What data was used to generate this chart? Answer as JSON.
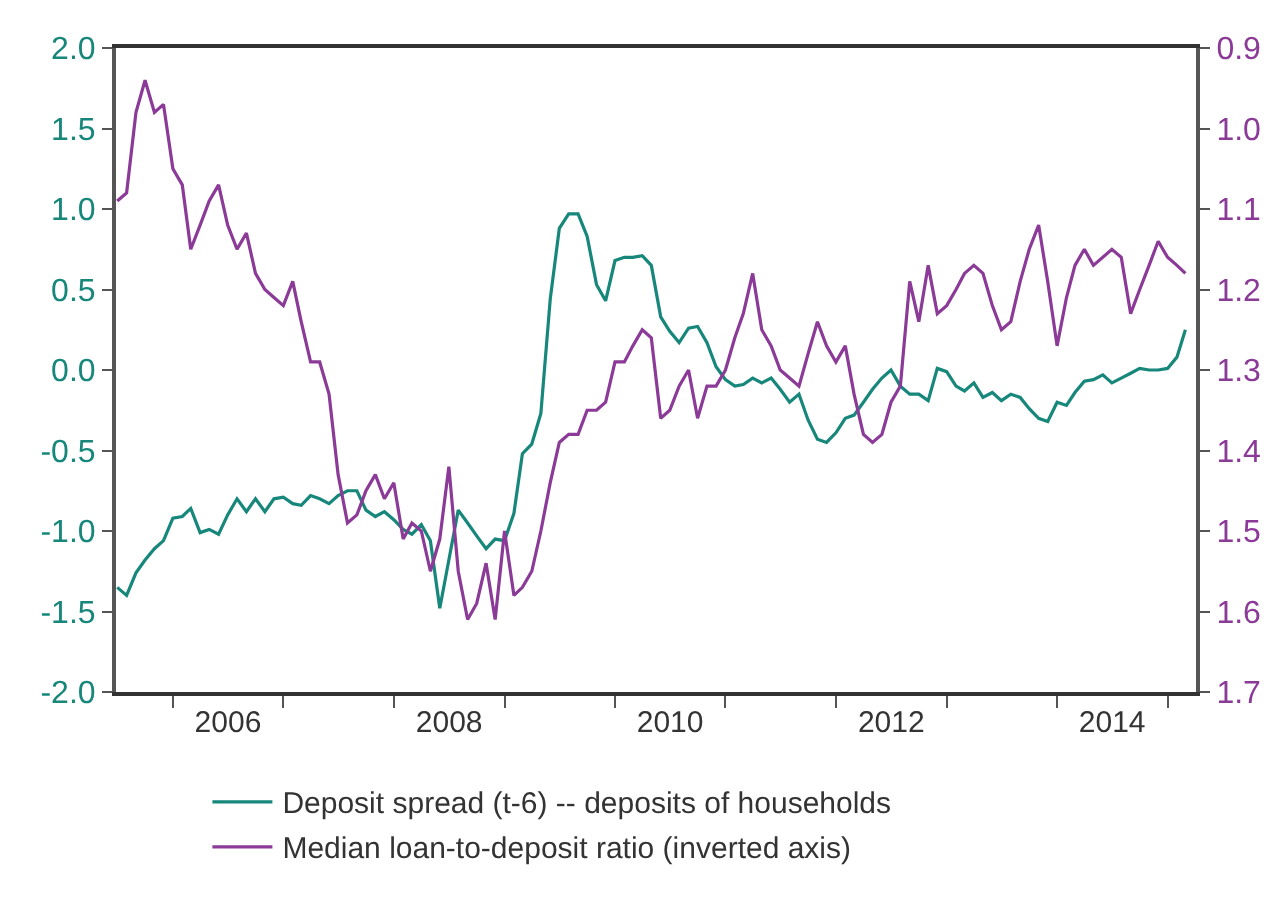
{
  "chart_data": {
    "type": "line",
    "x": [
      "2005-07",
      "2005-08",
      "2005-09",
      "2005-10",
      "2005-11",
      "2005-12",
      "2006-01",
      "2006-02",
      "2006-03",
      "2006-04",
      "2006-05",
      "2006-06",
      "2006-07",
      "2006-08",
      "2006-09",
      "2006-10",
      "2006-11",
      "2006-12",
      "2007-01",
      "2007-02",
      "2007-03",
      "2007-04",
      "2007-05",
      "2007-06",
      "2007-07",
      "2007-08",
      "2007-09",
      "2007-10",
      "2007-11",
      "2007-12",
      "2008-01",
      "2008-02",
      "2008-03",
      "2008-04",
      "2008-05",
      "2008-06",
      "2008-07",
      "2008-08",
      "2008-09",
      "2008-10",
      "2008-11",
      "2008-12",
      "2009-01",
      "2009-02",
      "2009-03",
      "2009-04",
      "2009-05",
      "2009-06",
      "2009-07",
      "2009-08",
      "2009-09",
      "2009-10",
      "2009-11",
      "2009-12",
      "2010-01",
      "2010-02",
      "2010-03",
      "2010-04",
      "2010-05",
      "2010-06",
      "2010-07",
      "2010-08",
      "2010-09",
      "2010-10",
      "2010-11",
      "2010-12",
      "2011-01",
      "2011-02",
      "2011-03",
      "2011-04",
      "2011-05",
      "2011-06",
      "2011-07",
      "2011-08",
      "2011-09",
      "2011-10",
      "2011-11",
      "2011-12",
      "2012-01",
      "2012-02",
      "2012-03",
      "2012-04",
      "2012-05",
      "2012-06",
      "2012-07",
      "2012-08",
      "2012-09",
      "2012-10",
      "2012-11",
      "2012-12",
      "2013-01",
      "2013-02",
      "2013-03",
      "2013-04",
      "2013-05",
      "2013-06",
      "2013-07",
      "2013-08",
      "2013-09",
      "2013-10",
      "2013-11",
      "2013-12",
      "2014-01",
      "2014-02",
      "2014-03",
      "2014-04",
      "2014-05",
      "2014-06",
      "2014-07",
      "2014-08",
      "2014-09",
      "2014-10",
      "2014-11",
      "2014-12",
      "2015-01",
      "2015-02",
      "2015-03"
    ],
    "series": [
      {
        "name": "Deposit spread (t-6) -- deposits of households",
        "color": "#16877a",
        "values": [
          -1.35,
          -1.4,
          -1.26,
          -1.18,
          -1.11,
          -1.06,
          -0.92,
          -0.91,
          -0.86,
          -1.01,
          -0.99,
          -1.02,
          -0.9,
          -0.8,
          -0.88,
          -0.8,
          -0.88,
          -0.8,
          -0.79,
          -0.83,
          -0.84,
          -0.78,
          -0.8,
          -0.83,
          -0.78,
          -0.75,
          -0.75,
          -0.87,
          -0.91,
          -0.88,
          -0.93,
          -0.99,
          -1.02,
          -0.96,
          -1.06,
          -1.48,
          -1.18,
          -0.87,
          -0.95,
          -1.03,
          -1.11,
          -1.05,
          -1.06,
          -0.89,
          -0.52,
          -0.46,
          -0.27,
          0.44,
          0.88,
          0.97,
          0.97,
          0.83,
          0.53,
          0.43,
          0.68,
          0.7,
          0.7,
          0.71,
          0.65,
          0.33,
          0.24,
          0.17,
          0.26,
          0.27,
          0.17,
          0.02,
          -0.06,
          -0.1,
          -0.09,
          -0.05,
          -0.08,
          -0.05,
          -0.12,
          -0.2,
          -0.15,
          -0.31,
          -0.43,
          -0.45,
          -0.39,
          -0.3,
          -0.28,
          -0.2,
          -0.12,
          -0.05,
          0.0,
          -0.1,
          -0.15,
          -0.15,
          -0.19,
          0.01,
          -0.01,
          -0.1,
          -0.13,
          -0.08,
          -0.17,
          -0.14,
          -0.19,
          -0.15,
          -0.17,
          -0.24,
          -0.3,
          -0.32,
          -0.2,
          -0.22,
          -0.14,
          -0.07,
          -0.06,
          -0.03,
          -0.08,
          -0.05,
          -0.02,
          0.01,
          0.0,
          0.0,
          0.01,
          0.08,
          0.25
        ]
      },
      {
        "name": "Median loan-to-deposit ratio (inverted axis)",
        "color": "#8b3a97",
        "axis": "y2",
        "values": [
          1.09,
          1.08,
          0.98,
          0.94,
          0.98,
          0.97,
          1.05,
          1.07,
          1.15,
          1.12,
          1.09,
          1.07,
          1.12,
          1.15,
          1.13,
          1.18,
          1.2,
          1.21,
          1.22,
          1.19,
          1.24,
          1.29,
          1.29,
          1.33,
          1.43,
          1.49,
          1.48,
          1.45,
          1.43,
          1.46,
          1.44,
          1.51,
          1.49,
          1.5,
          1.55,
          1.51,
          1.42,
          1.55,
          1.61,
          1.59,
          1.54,
          1.61,
          1.5,
          1.58,
          1.57,
          1.55,
          1.5,
          1.44,
          1.39,
          1.38,
          1.38,
          1.35,
          1.35,
          1.34,
          1.29,
          1.29,
          1.27,
          1.25,
          1.26,
          1.36,
          1.35,
          1.32,
          1.3,
          1.36,
          1.32,
          1.32,
          1.3,
          1.26,
          1.23,
          1.18,
          1.25,
          1.27,
          1.3,
          1.31,
          1.32,
          1.28,
          1.24,
          1.27,
          1.29,
          1.27,
          1.33,
          1.38,
          1.39,
          1.38,
          1.34,
          1.32,
          1.19,
          1.24,
          1.17,
          1.23,
          1.22,
          1.2,
          1.18,
          1.17,
          1.18,
          1.22,
          1.25,
          1.24,
          1.19,
          1.15,
          1.12,
          1.19,
          1.27,
          1.21,
          1.17,
          1.15,
          1.17,
          1.16,
          1.15,
          1.16,
          1.23,
          1.2,
          1.17,
          1.14,
          1.16,
          1.17,
          1.18
        ]
      }
    ],
    "xlim": [
      "2005-06-27",
      "2015-04-05"
    ],
    "xticks": [
      {
        "value": "2006-01-01",
        "label": null
      },
      {
        "value": "2006-07-02",
        "label": "2006"
      },
      {
        "value": "2007-01-01",
        "label": null
      },
      {
        "value": "2008-01-01",
        "label": null
      },
      {
        "value": "2008-07-02",
        "label": "2008"
      },
      {
        "value": "2009-01-01",
        "label": null
      },
      {
        "value": "2010-01-01",
        "label": null
      },
      {
        "value": "2010-07-02",
        "label": "2010"
      },
      {
        "value": "2011-01-01",
        "label": null
      },
      {
        "value": "2012-01-01",
        "label": null
      },
      {
        "value": "2012-07-02",
        "label": "2012"
      },
      {
        "value": "2013-01-01",
        "label": null
      },
      {
        "value": "2014-01-01",
        "label": null
      },
      {
        "value": "2014-07-02",
        "label": "2014"
      },
      {
        "value": "2015-01-01",
        "label": null
      }
    ],
    "ylim": [
      -2.0,
      2.0
    ],
    "yticks": [
      {
        "value": -2,
        "label": "-2.0"
      },
      {
        "value": -1.5,
        "label": "-1.5"
      },
      {
        "value": -1,
        "label": "-1.0"
      },
      {
        "value": -0.5,
        "label": "-0.5"
      },
      {
        "value": 0,
        "label": "0.0"
      },
      {
        "value": 0.5,
        "label": "0.5"
      },
      {
        "value": 1,
        "label": "1.0"
      },
      {
        "value": 1.5,
        "label": "1.5"
      },
      {
        "value": 2,
        "label": "2.0"
      }
    ],
    "y2lim": [
      1.7,
      0.9
    ],
    "y2ticks": [
      0.9,
      {
        "value": 1,
        "label": "1.0"
      },
      1.1,
      1.2,
      1.3,
      1.4,
      1.5,
      1.6,
      1.7
    ],
    "legend": "bottom",
    "marker": "none",
    "line_style": "solid"
  }
}
